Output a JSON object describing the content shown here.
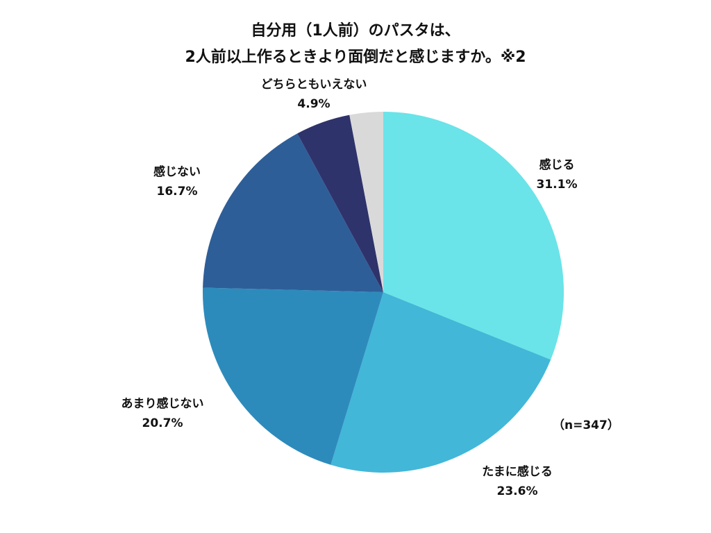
{
  "chart_data": {
    "type": "pie",
    "title": "自分用（1人前）のパスタは、",
    "subtitle": "2人前以上作るときより面倒だと感じますか。※2",
    "note": "（n=347）",
    "slices": [
      {
        "label": "感じる",
        "value_label": "31.1%",
        "value": 31.1,
        "color": "#6AE4E8"
      },
      {
        "label": "たまに感じる",
        "value_label": "23.6%",
        "value": 23.6,
        "color": "#42B7D8"
      },
      {
        "label": "あまり感じない",
        "value_label": "20.7%",
        "value": 20.7,
        "color": "#2D8BBC"
      },
      {
        "label": "感じない",
        "value_label": "16.7%",
        "value": 16.7,
        "color": "#2E5E98"
      },
      {
        "label": "どちらともいえない",
        "value_label": "4.9%",
        "value": 4.9,
        "color": "#2F336B"
      },
      {
        "label": "",
        "value_label": "",
        "value": 3.0,
        "color": "#D9D9D9"
      }
    ]
  }
}
